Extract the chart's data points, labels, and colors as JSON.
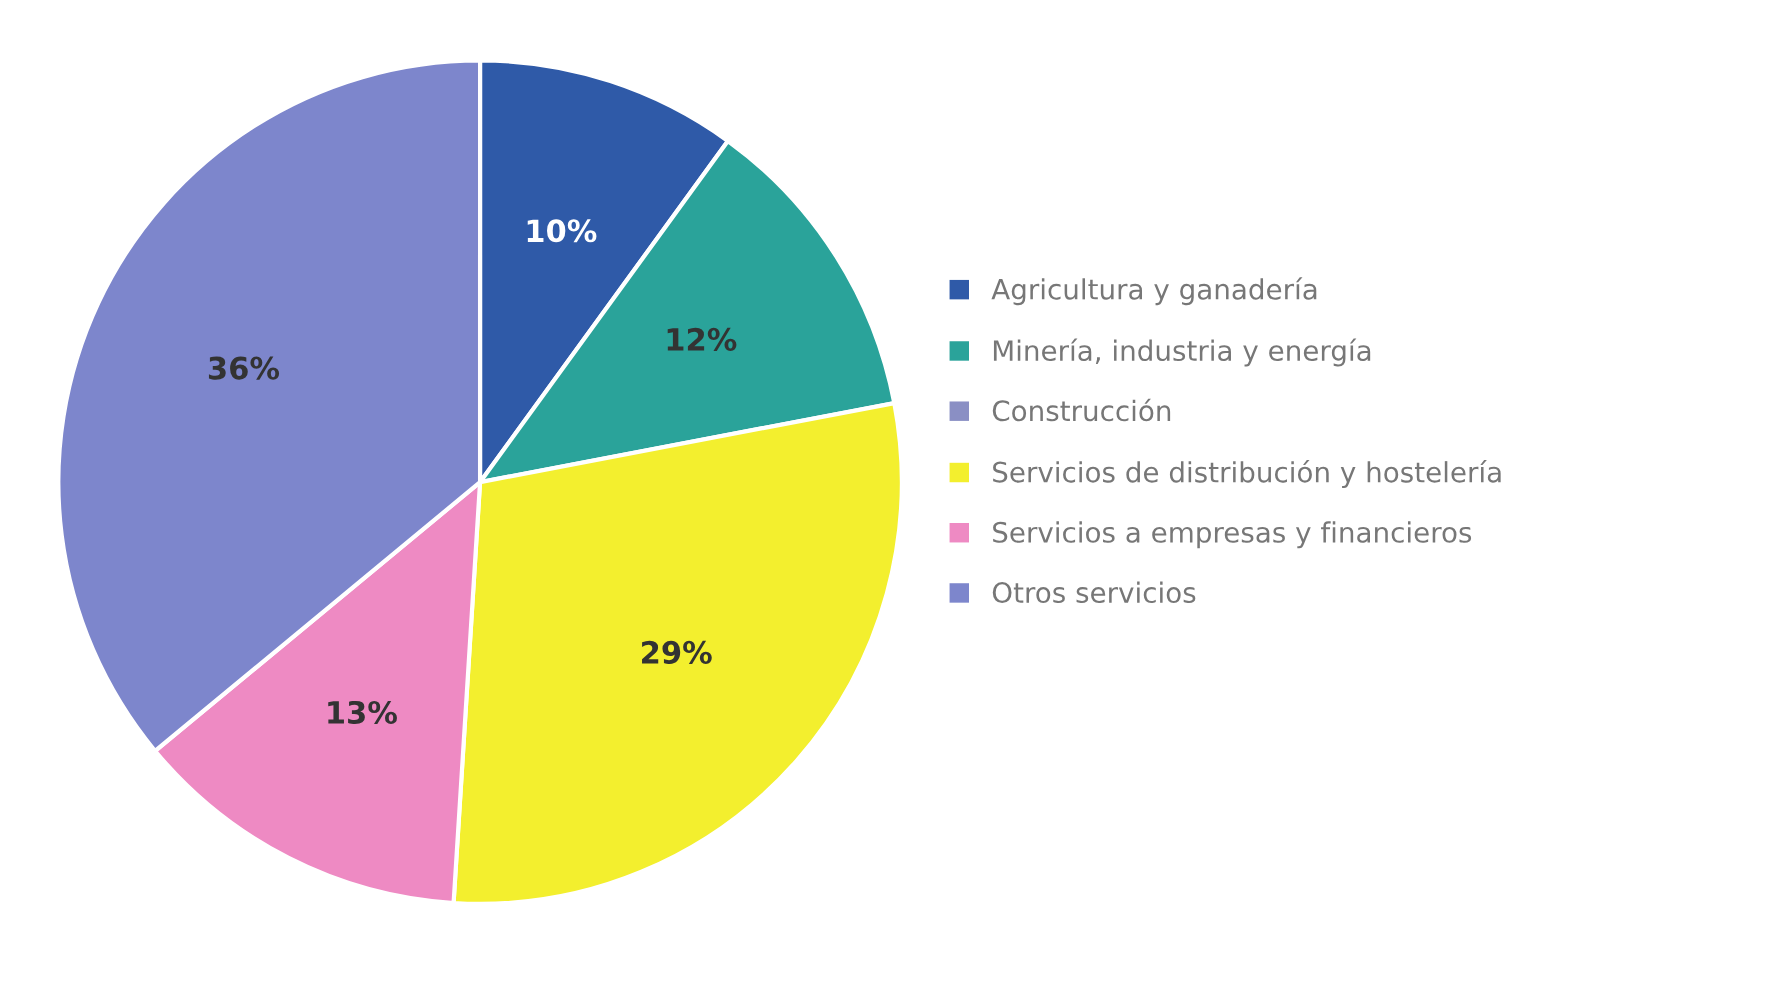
{
  "chart_data": {
    "type": "pie",
    "categories": [
      "Agricultura y ganadería",
      "Minería, industria y energía",
      "Construcción",
      "Servicios de distribución y hostelería",
      "Servicios a empresas y financieros",
      "Otros servicios"
    ],
    "values": [
      10,
      12,
      0,
      29,
      13,
      36
    ],
    "value_labels": [
      "10%",
      "12%",
      null,
      "29%",
      "13%",
      "36%"
    ],
    "colors": [
      "#2f5aa8",
      "#2aa39a",
      "#8a8fc4",
      "#f3ef2e",
      "#ee8ac3",
      "#7d86cc"
    ],
    "legend": "right"
  }
}
